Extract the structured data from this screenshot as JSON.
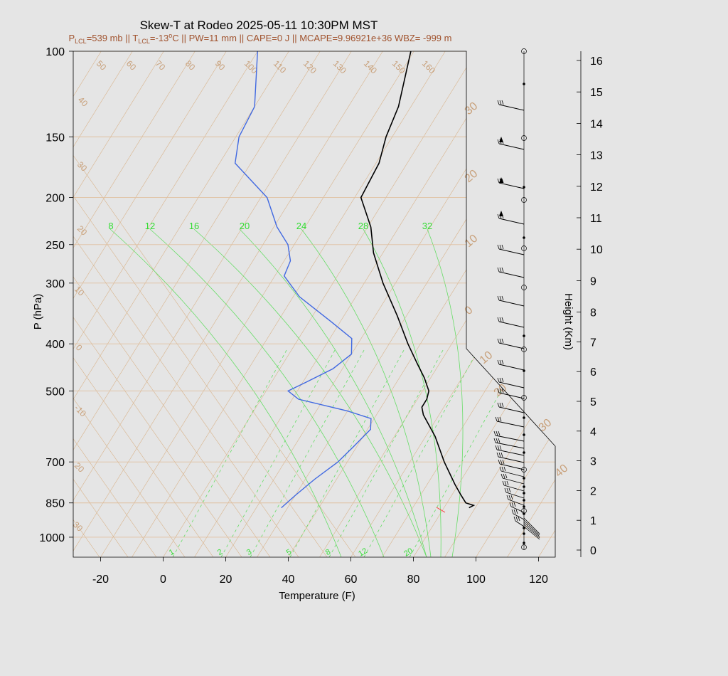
{
  "title": "Skew-T at Rodeo 2025-05-11 10:30PM MST",
  "subtitle": {
    "p_lcl_sym": "P",
    "p_lcl_sub": "LCL",
    "p_lcl_val": "=539 mb || ",
    "t_lcl_sym": "T",
    "t_lcl_sub": "LCL",
    "t_lcl_val": "=-13",
    "deg": "o",
    "rest": "C || PW=11 mm || CAPE=0 J || MCAPE=9.96921e+36 WBZ= -999 m"
  },
  "axes": {
    "xlabel": "Temperature (F)",
    "ylabel": "P (hPa)",
    "y2label": "Height (Km)",
    "pressure_ticks": [
      100,
      150,
      200,
      250,
      300,
      400,
      500,
      700,
      850,
      1000
    ],
    "pressure_labels": [
      "100",
      "150",
      "200",
      "250",
      "300",
      "400",
      "500",
      "700",
      "850",
      "1000"
    ],
    "temp_ticks": [
      -20,
      0,
      20,
      40,
      60,
      80,
      100,
      120
    ],
    "temp_labels": [
      "-20",
      "0",
      "20",
      "40",
      "60",
      "80",
      "100",
      "120"
    ],
    "height_ticks": [
      0,
      1,
      2,
      3,
      4,
      5,
      6,
      7,
      8,
      9,
      10,
      11,
      12,
      13,
      14,
      15,
      16
    ],
    "height_labels": [
      "0",
      "1",
      "2",
      "3",
      "4",
      "5",
      "6",
      "7",
      "8",
      "9",
      "10",
      "11",
      "12",
      "13",
      "14",
      "15",
      "16"
    ],
    "xlim": [
      -28,
      125
    ],
    "plim": [
      100,
      1050
    ]
  },
  "colors": {
    "background": "#e5e5e5",
    "temperature": "#000000",
    "dewpoint": "#4169e1",
    "isotherm": "#d9b48c",
    "mixing_ratio": "#66dd66",
    "grid_pressure": "#e0c0a0",
    "subtitle": "#a0522d"
  },
  "isotherm_labels_top": [
    "50",
    "60",
    "70",
    "80",
    "90",
    "100",
    "110",
    "120",
    "130",
    "140",
    "150",
    "160"
  ],
  "isotherm_labels_left": [
    "40",
    "30",
    "20",
    "10",
    "0",
    "-10",
    "20",
    "30"
  ],
  "isotherm_labels_right": [
    "30",
    "20",
    "10",
    "0",
    "10",
    "20",
    "30",
    "40"
  ],
  "mixing_ratio_labels_top": [
    "8",
    "12",
    "16",
    "20",
    "24",
    "28",
    "32"
  ],
  "mixing_ratio_labels_bottom": [
    "1",
    "2",
    "3",
    "5",
    "8",
    "12",
    "20"
  ],
  "chart_data": {
    "type": "line",
    "title": "Skew-T at Rodeo 2025-05-11 10:30PM MST",
    "xlabel": "Temperature (F)",
    "ylabel": "P (hPa)",
    "series": [
      {
        "name": "temperature",
        "points": [
          {
            "p": 870,
            "t": 88
          },
          {
            "p": 860,
            "t": 89
          },
          {
            "p": 850,
            "t": 86
          },
          {
            "p": 820,
            "t": 83
          },
          {
            "p": 780,
            "t": 79
          },
          {
            "p": 700,
            "t": 71
          },
          {
            "p": 620,
            "t": 63
          },
          {
            "p": 560,
            "t": 55
          },
          {
            "p": 540,
            "t": 53
          },
          {
            "p": 520,
            "t": 53
          },
          {
            "p": 500,
            "t": 52
          },
          {
            "p": 470,
            "t": 48
          },
          {
            "p": 440,
            "t": 43
          },
          {
            "p": 400,
            "t": 36
          },
          {
            "p": 350,
            "t": 27
          },
          {
            "p": 300,
            "t": 16
          },
          {
            "p": 260,
            "t": 7
          },
          {
            "p": 230,
            "t": 1
          },
          {
            "p": 200,
            "t": -8
          },
          {
            "p": 170,
            "t": -9
          },
          {
            "p": 150,
            "t": -12
          },
          {
            "p": 130,
            "t": -14
          },
          {
            "p": 100,
            "t": -21
          }
        ]
      },
      {
        "name": "dewpoint",
        "points": [
          {
            "p": 870,
            "t": 28
          },
          {
            "p": 820,
            "t": 30
          },
          {
            "p": 760,
            "t": 33
          },
          {
            "p": 700,
            "t": 37
          },
          {
            "p": 650,
            "t": 39
          },
          {
            "p": 600,
            "t": 41
          },
          {
            "p": 570,
            "t": 39
          },
          {
            "p": 550,
            "t": 30
          },
          {
            "p": 520,
            "t": 12
          },
          {
            "p": 500,
            "t": 7
          },
          {
            "p": 480,
            "t": 11
          },
          {
            "p": 450,
            "t": 17
          },
          {
            "p": 420,
            "t": 20
          },
          {
            "p": 390,
            "t": 17
          },
          {
            "p": 360,
            "t": 7
          },
          {
            "p": 320,
            "t": -8
          },
          {
            "p": 290,
            "t": -17
          },
          {
            "p": 270,
            "t": -18
          },
          {
            "p": 250,
            "t": -22
          },
          {
            "p": 230,
            "t": -29
          },
          {
            "p": 200,
            "t": -38
          },
          {
            "p": 170,
            "t": -55
          },
          {
            "p": 150,
            "t": -59
          },
          {
            "p": 130,
            "t": -60
          },
          {
            "p": 100,
            "t": -70
          }
        ]
      }
    ]
  }
}
